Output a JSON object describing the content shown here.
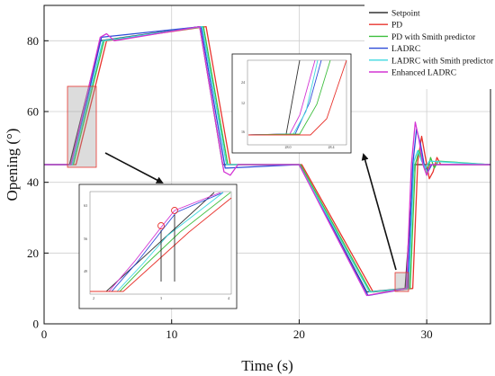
{
  "chart_data": {
    "type": "line",
    "title": "",
    "xlabel": "Time (s)",
    "ylabel": "Opening (°)",
    "xlim": [
      0,
      35
    ],
    "ylim": [
      0,
      90
    ],
    "x_ticks": [
      0,
      10,
      20,
      30
    ],
    "y_ticks": [
      0,
      20,
      40,
      60,
      80
    ],
    "grid": true,
    "legend_position": "top-right",
    "colors": {
      "Setpoint": "#333333",
      "PD": "#e8342e",
      "PD with Smith predictor": "#3fbf3f",
      "LADRC": "#2e4bd8",
      "LADRC with Smith predictor": "#3fd8e0",
      "Enhanced LADRC": "#d435d4"
    },
    "series": [
      {
        "name": "Setpoint",
        "points": [
          [
            0,
            45
          ],
          [
            2.0,
            45
          ],
          [
            4.4,
            80
          ],
          [
            12.2,
            84
          ],
          [
            14.0,
            45
          ],
          [
            20.0,
            45
          ],
          [
            25.3,
            9
          ],
          [
            28.3,
            10
          ],
          [
            29.0,
            45
          ],
          [
            35,
            45
          ]
        ]
      },
      {
        "name": "PD",
        "points": [
          [
            0,
            45
          ],
          [
            2.5,
            45
          ],
          [
            4.9,
            80
          ],
          [
            12.7,
            84
          ],
          [
            14.6,
            45
          ],
          [
            20.2,
            45
          ],
          [
            25.8,
            9
          ],
          [
            28.9,
            10
          ],
          [
            29.3,
            46
          ],
          [
            29.6,
            53
          ],
          [
            29.9,
            47
          ],
          [
            30.2,
            41
          ],
          [
            30.5,
            43
          ],
          [
            30.8,
            47
          ],
          [
            31.1,
            45
          ],
          [
            35,
            45
          ]
        ]
      },
      {
        "name": "PD with Smith predictor",
        "points": [
          [
            0,
            45
          ],
          [
            2.3,
            45
          ],
          [
            4.7,
            80
          ],
          [
            12.5,
            84
          ],
          [
            14.4,
            45
          ],
          [
            20.1,
            45
          ],
          [
            25.6,
            9
          ],
          [
            28.7,
            10
          ],
          [
            29.1,
            45
          ],
          [
            29.4,
            49
          ],
          [
            29.7,
            46
          ],
          [
            30.0,
            42
          ],
          [
            30.3,
            47
          ],
          [
            30.6,
            44
          ],
          [
            30.9,
            46
          ],
          [
            35,
            45
          ]
        ]
      },
      {
        "name": "LADRC",
        "points": [
          [
            0,
            45
          ],
          [
            2.2,
            45
          ],
          [
            4.5,
            81
          ],
          [
            12.3,
            84
          ],
          [
            14.2,
            44
          ],
          [
            20.0,
            45
          ],
          [
            25.4,
            8
          ],
          [
            28.5,
            10
          ],
          [
            28.9,
            45
          ],
          [
            29.2,
            55
          ],
          [
            29.5,
            51
          ],
          [
            29.8,
            45
          ],
          [
            30.1,
            43
          ],
          [
            30.4,
            45
          ],
          [
            35,
            45
          ]
        ]
      },
      {
        "name": "LADRC with Smith predictor",
        "points": [
          [
            0,
            45
          ],
          [
            2.2,
            45
          ],
          [
            4.6,
            80
          ],
          [
            12.4,
            84
          ],
          [
            14.3,
            45
          ],
          [
            20.0,
            45
          ],
          [
            25.5,
            9
          ],
          [
            28.6,
            10
          ],
          [
            29.0,
            46
          ],
          [
            29.3,
            49
          ],
          [
            29.6,
            46
          ],
          [
            29.9,
            44
          ],
          [
            30.2,
            46
          ],
          [
            35,
            45
          ]
        ]
      },
      {
        "name": "Enhanced LADRC",
        "points": [
          [
            0,
            45
          ],
          [
            2.1,
            45
          ],
          [
            4.4,
            81
          ],
          [
            4.9,
            82
          ],
          [
            5.5,
            80
          ],
          [
            12.2,
            84
          ],
          [
            14.1,
            43
          ],
          [
            14.6,
            42
          ],
          [
            15.2,
            45
          ],
          [
            20.0,
            45
          ],
          [
            25.3,
            8
          ],
          [
            28.4,
            10
          ],
          [
            28.8,
            45
          ],
          [
            29.1,
            57
          ],
          [
            29.4,
            52
          ],
          [
            29.7,
            45
          ],
          [
            30.0,
            42
          ],
          [
            30.3,
            45
          ],
          [
            35,
            45
          ]
        ]
      }
    ],
    "insets": [
      {
        "x_ticks": [
          "2",
          "3",
          "4"
        ],
        "y_ticks": [
          "63",
          "56",
          "49"
        ]
      },
      {
        "x_ticks": [
          "28.0",
          "28.4"
        ],
        "y_ticks": [
          "24",
          "12",
          "16"
        ]
      }
    ]
  }
}
